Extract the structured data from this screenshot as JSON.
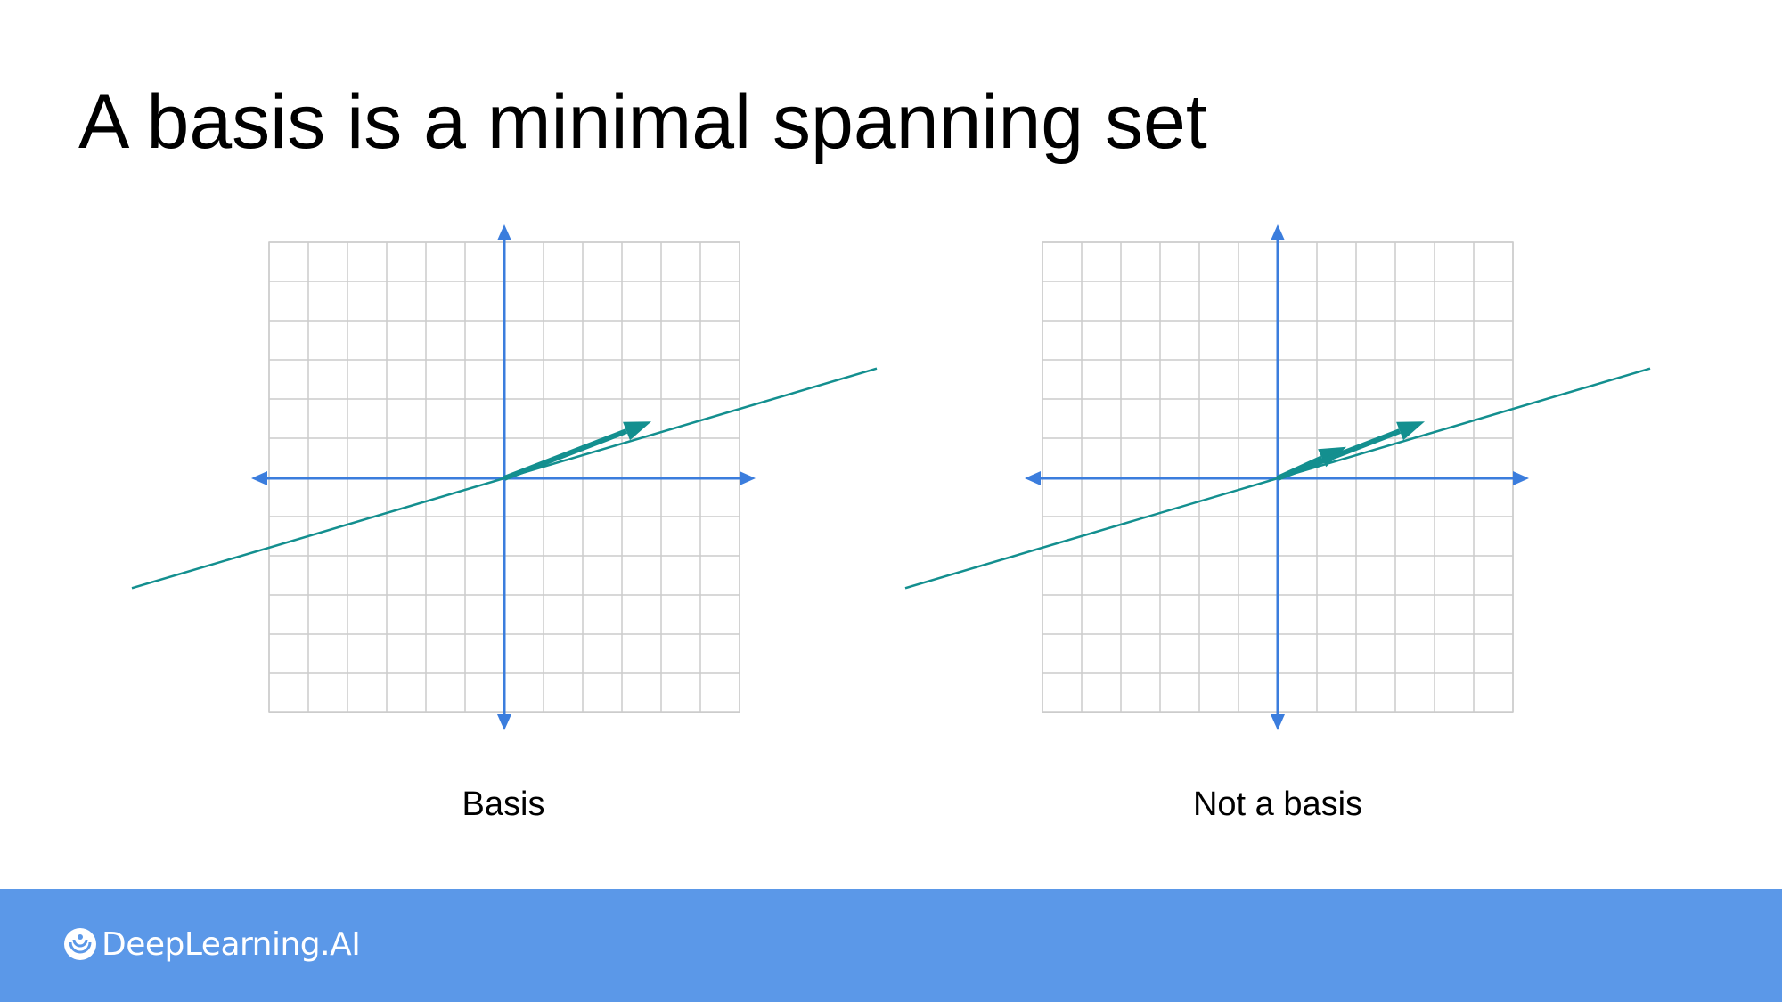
{
  "slide": {
    "title": "A basis is a minimal spanning set"
  },
  "colors": {
    "axis": "#3b7ddd",
    "grid": "#cccccc",
    "vector": "#138f8f",
    "footer": "#5b98e8"
  },
  "panels": [
    {
      "caption": "Basis",
      "line_slope": 0.5,
      "vectors": [
        [
          3.75,
          1.45
        ]
      ]
    },
    {
      "caption": "Not a basis",
      "line_slope": 0.5,
      "vectors": [
        [
          1.75,
          0.8
        ],
        [
          3.75,
          1.45
        ]
      ]
    }
  ],
  "footer": {
    "brand": "DeepLearning.AI",
    "logo_icon": "deeplearning-logo-icon"
  }
}
